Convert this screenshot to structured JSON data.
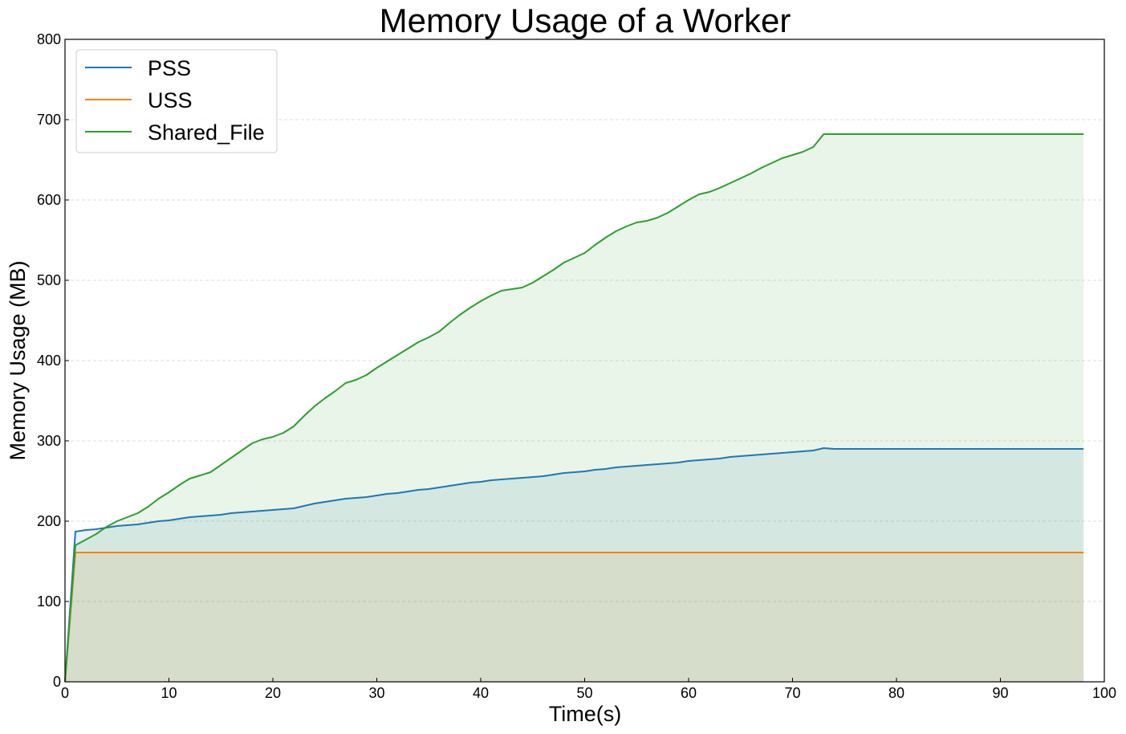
{
  "chart_data": {
    "type": "area",
    "title": "Memory Usage of a Worker",
    "xlabel": "Time(s)",
    "ylabel": "Memory Usage (MB)",
    "xlim": [
      0,
      100
    ],
    "ylim": [
      0,
      800
    ],
    "x_ticks": [
      0,
      10,
      20,
      30,
      40,
      50,
      60,
      70,
      80,
      90,
      100
    ],
    "y_ticks": [
      0,
      100,
      200,
      300,
      400,
      500,
      600,
      700,
      800
    ],
    "x_tick_labels": [
      "0",
      "10",
      "20",
      "30",
      "40",
      "50",
      "60",
      "70",
      "80",
      "90",
      "100"
    ],
    "y_tick_labels": [
      "0",
      "100",
      "200",
      "300",
      "400",
      "500",
      "600",
      "700",
      "800"
    ],
    "grid": "horizontal dashed",
    "legend_position": "top-left",
    "x": [
      0,
      1,
      2,
      3,
      4,
      5,
      6,
      7,
      8,
      9,
      10,
      11,
      12,
      13,
      14,
      15,
      16,
      17,
      18,
      19,
      20,
      21,
      22,
      23,
      24,
      25,
      26,
      27,
      28,
      29,
      30,
      31,
      32,
      33,
      34,
      35,
      36,
      37,
      38,
      39,
      40,
      41,
      42,
      43,
      44,
      45,
      46,
      47,
      48,
      49,
      50,
      51,
      52,
      53,
      54,
      55,
      56,
      57,
      58,
      59,
      60,
      61,
      62,
      63,
      64,
      65,
      66,
      67,
      68,
      69,
      70,
      71,
      72,
      73,
      74,
      75,
      76,
      77,
      78,
      79,
      80,
      81,
      82,
      83,
      84,
      85,
      86,
      87,
      88,
      89,
      90,
      91,
      92,
      93,
      94,
      95,
      96,
      97,
      98
    ],
    "series": [
      {
        "name": "PSS",
        "color": "#1f77b4",
        "fill": "#1f77b4",
        "values": [
          0,
          187,
          189,
          190,
          192,
          194,
          195,
          196,
          198,
          200,
          201,
          203,
          205,
          206,
          207,
          208,
          210,
          211,
          212,
          213,
          214,
          215,
          216,
          219,
          222,
          224,
          226,
          228,
          229,
          230,
          232,
          234,
          235,
          237,
          239,
          240,
          242,
          244,
          246,
          248,
          249,
          251,
          252,
          253,
          254,
          255,
          256,
          258,
          260,
          261,
          262,
          264,
          265,
          267,
          268,
          269,
          270,
          271,
          272,
          273,
          275,
          276,
          277,
          278,
          280,
          281,
          282,
          283,
          284,
          285,
          286,
          287,
          288,
          291,
          290,
          290,
          290,
          290,
          290,
          290,
          290,
          290,
          290,
          290,
          290,
          290,
          290,
          290,
          290,
          290,
          290,
          290,
          290,
          290,
          290,
          290,
          290,
          290,
          290
        ]
      },
      {
        "name": "USS",
        "color": "#ff7f0e",
        "fill": "#ff7f0e",
        "values": [
          0,
          161,
          161,
          161,
          161,
          161,
          161,
          161,
          161,
          161,
          161,
          161,
          161,
          161,
          161,
          161,
          161,
          161,
          161,
          161,
          161,
          161,
          161,
          161,
          161,
          161,
          161,
          161,
          161,
          161,
          161,
          161,
          161,
          161,
          161,
          161,
          161,
          161,
          161,
          161,
          161,
          161,
          161,
          161,
          161,
          161,
          161,
          161,
          161,
          161,
          161,
          161,
          161,
          161,
          161,
          161,
          161,
          161,
          161,
          161,
          161,
          161,
          161,
          161,
          161,
          161,
          161,
          161,
          161,
          161,
          161,
          161,
          161,
          161,
          161,
          161,
          161,
          161,
          161,
          161,
          161,
          161,
          161,
          161,
          161,
          161,
          161,
          161,
          161,
          161,
          161,
          161,
          161,
          161,
          161,
          161,
          161,
          161,
          161
        ]
      },
      {
        "name": "Shared_File",
        "color": "#2ca02c",
        "fill": "#2ca02c",
        "values": [
          0,
          170,
          177,
          184,
          193,
          200,
          205,
          210,
          218,
          228,
          236,
          245,
          253,
          257,
          261,
          270,
          279,
          288,
          297,
          302,
          305,
          310,
          318,
          331,
          343,
          353,
          362,
          372,
          376,
          382,
          391,
          399,
          407,
          415,
          423,
          429,
          436,
          447,
          457,
          466,
          474,
          481,
          487,
          489,
          491,
          497,
          505,
          513,
          522,
          528,
          534,
          544,
          553,
          561,
          567,
          572,
          574,
          578,
          584,
          592,
          600,
          607,
          610,
          615,
          621,
          627,
          633,
          640,
          646,
          652,
          656,
          660,
          666,
          682,
          682,
          682,
          682,
          682,
          682,
          682,
          682,
          682,
          682,
          682,
          682,
          682,
          682,
          682,
          682,
          682,
          682,
          682,
          682,
          682,
          682,
          682,
          682,
          682,
          682
        ]
      }
    ]
  }
}
